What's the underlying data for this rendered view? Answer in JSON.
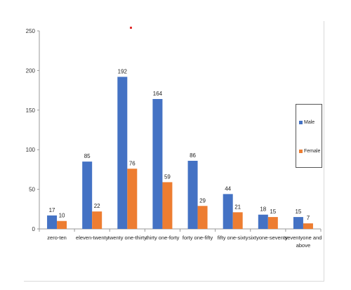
{
  "chart_data": {
    "type": "bar",
    "categories": [
      "zero-ten",
      "eleven-twenty",
      "twenty one-thirty",
      "thirty one-forty",
      "forty one-fifty",
      "fifty one-sixty",
      "sixtyone-seventy",
      "seventyone and above"
    ],
    "series": [
      {
        "name": "Male",
        "color": "#4472c4",
        "values": [
          17,
          85,
          192,
          164,
          86,
          44,
          18,
          15
        ]
      },
      {
        "name": "Female",
        "color": "#ed7d31",
        "values": [
          10,
          22,
          76,
          59,
          29,
          21,
          15,
          7
        ]
      }
    ],
    "yticks": [
      0,
      50,
      100,
      150,
      200,
      250
    ],
    "ylim": [
      0,
      250
    ],
    "grid": false,
    "legend_position": "right",
    "title": "",
    "xlabel": "",
    "ylabel": ""
  }
}
